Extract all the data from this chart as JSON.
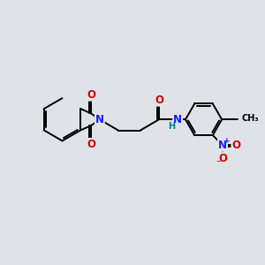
{
  "bg_color": "#dfe3e8",
  "bond_color": "#000000",
  "bond_width": 1.4,
  "atom_colors": {
    "N": "#1a1aff",
    "O": "#cc0000",
    "NH": "#008080"
  },
  "font_size": 8.5,
  "font_size_small": 7.0
}
